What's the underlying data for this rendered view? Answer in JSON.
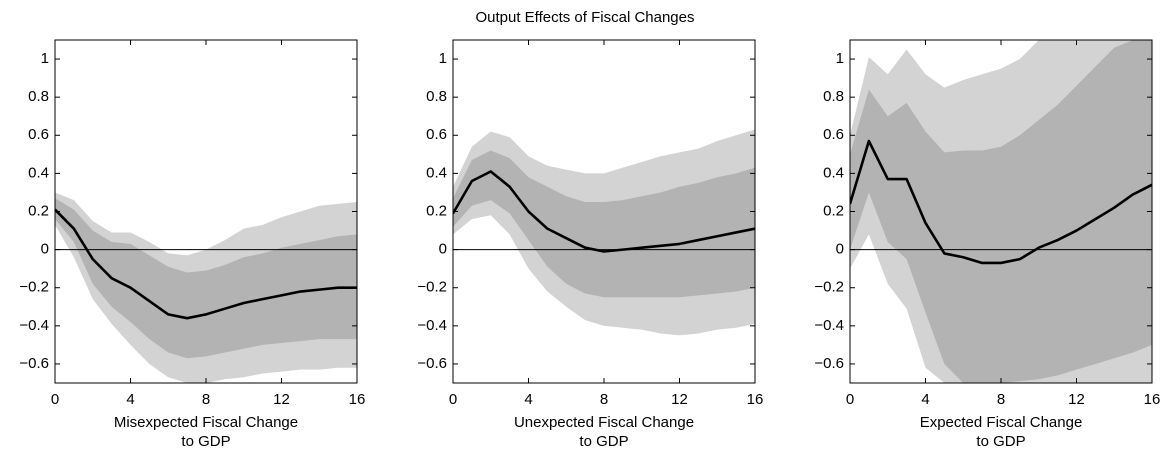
{
  "title": "Output Effects of Fiscal Changes",
  "chart_data": [
    {
      "type": "band-line",
      "xlabel": [
        "Misexpected Fiscal Change",
        "to GDP"
      ],
      "x": [
        0,
        1,
        2,
        3,
        4,
        5,
        6,
        7,
        8,
        9,
        10,
        11,
        12,
        13,
        14,
        15,
        16
      ],
      "xlim": [
        0,
        16
      ],
      "xticks": [
        0,
        4,
        8,
        12,
        16
      ],
      "ylim": [
        -0.7,
        1.1
      ],
      "yticks": [
        {
          "value": -0.6,
          "label": "−0.6"
        },
        {
          "value": -0.4,
          "label": "−0.4"
        },
        {
          "value": -0.2,
          "label": "−0.2"
        },
        0,
        0.2,
        0.4,
        0.6,
        0.8,
        1
      ],
      "hline": 0,
      "bands": [
        {
          "color": "#d3d3d3",
          "upper": [
            0.3,
            0.26,
            0.15,
            0.09,
            0.09,
            0.04,
            -0.02,
            -0.03,
            0.0,
            0.05,
            0.11,
            0.13,
            0.17,
            0.2,
            0.23,
            0.24,
            0.25
          ],
          "lower": [
            0.13,
            -0.04,
            -0.26,
            -0.39,
            -0.5,
            -0.6,
            -0.67,
            -0.7,
            -0.7,
            -0.68,
            -0.67,
            -0.65,
            -0.64,
            -0.63,
            -0.63,
            -0.62,
            -0.62
          ]
        },
        {
          "color": "#b3b3b3",
          "upper": [
            0.27,
            0.21,
            0.1,
            0.04,
            0.03,
            -0.03,
            -0.09,
            -0.12,
            -0.11,
            -0.08,
            -0.04,
            -0.02,
            0.01,
            0.03,
            0.05,
            0.07,
            0.08
          ],
          "lower": [
            0.16,
            0.04,
            -0.18,
            -0.3,
            -0.38,
            -0.47,
            -0.54,
            -0.57,
            -0.56,
            -0.54,
            -0.52,
            -0.5,
            -0.49,
            -0.48,
            -0.47,
            -0.47,
            -0.47
          ]
        }
      ],
      "color": "#000000",
      "values": [
        0.21,
        0.11,
        -0.05,
        -0.15,
        -0.2,
        -0.27,
        -0.34,
        -0.36,
        -0.34,
        -0.31,
        -0.28,
        -0.26,
        -0.24,
        -0.22,
        -0.21,
        -0.2,
        -0.2
      ]
    },
    {
      "type": "band-line",
      "xlabel": [
        "Unexpected Fiscal Change",
        "to GDP"
      ],
      "x": [
        0,
        1,
        2,
        3,
        4,
        5,
        6,
        7,
        8,
        9,
        10,
        11,
        12,
        13,
        14,
        15,
        16
      ],
      "xlim": [
        0,
        16
      ],
      "xticks": [
        0,
        4,
        8,
        12,
        16
      ],
      "ylim": [
        -0.7,
        1.1
      ],
      "yticks": [
        {
          "value": -0.6,
          "label": "−0.6"
        },
        {
          "value": -0.4,
          "label": "−0.4"
        },
        {
          "value": -0.2,
          "label": "−0.2"
        },
        0,
        0.2,
        0.4,
        0.6,
        0.8,
        1
      ],
      "hline": 0,
      "bands": [
        {
          "color": "#d3d3d3",
          "upper": [
            0.33,
            0.54,
            0.62,
            0.59,
            0.49,
            0.44,
            0.42,
            0.4,
            0.4,
            0.43,
            0.46,
            0.49,
            0.51,
            0.53,
            0.57,
            0.6,
            0.63
          ],
          "lower": [
            0.08,
            0.16,
            0.18,
            0.08,
            -0.1,
            -0.22,
            -0.3,
            -0.37,
            -0.4,
            -0.41,
            -0.42,
            -0.44,
            -0.45,
            -0.44,
            -0.42,
            -0.41,
            -0.39
          ]
        },
        {
          "color": "#b3b3b3",
          "upper": [
            0.27,
            0.47,
            0.52,
            0.48,
            0.38,
            0.33,
            0.28,
            0.25,
            0.25,
            0.26,
            0.28,
            0.3,
            0.33,
            0.35,
            0.38,
            0.4,
            0.43
          ],
          "lower": [
            0.12,
            0.23,
            0.26,
            0.19,
            0.05,
            -0.09,
            -0.18,
            -0.23,
            -0.25,
            -0.25,
            -0.25,
            -0.25,
            -0.25,
            -0.24,
            -0.23,
            -0.22,
            -0.2
          ]
        }
      ],
      "color": "#000000",
      "values": [
        0.19,
        0.36,
        0.41,
        0.33,
        0.2,
        0.11,
        0.06,
        0.01,
        -0.01,
        0.0,
        0.01,
        0.02,
        0.03,
        0.05,
        0.07,
        0.09,
        0.11
      ]
    },
    {
      "type": "band-line",
      "xlabel": [
        "Expected Fiscal Change",
        "to GDP"
      ],
      "x": [
        0,
        1,
        2,
        3,
        4,
        5,
        6,
        7,
        8,
        9,
        10,
        11,
        12,
        13,
        14,
        15,
        16
      ],
      "xlim": [
        0,
        16
      ],
      "xticks": [
        0,
        4,
        8,
        12,
        16
      ],
      "ylim": [
        -0.7,
        1.1
      ],
      "yticks": [
        {
          "value": -0.6,
          "label": "−0.6"
        },
        {
          "value": -0.4,
          "label": "−0.4"
        },
        {
          "value": -0.2,
          "label": "−0.2"
        },
        0,
        0.2,
        0.4,
        0.6,
        0.8,
        1
      ],
      "hline": 0,
      "bands": [
        {
          "color": "#d3d3d3",
          "upper": [
            0.6,
            1.01,
            0.92,
            1.05,
            0.92,
            0.85,
            0.89,
            0.92,
            0.95,
            1.0,
            1.1,
            1.1,
            1.1,
            1.1,
            1.1,
            1.1,
            1.1
          ],
          "lower": [
            -0.1,
            0.08,
            -0.18,
            -0.31,
            -0.62,
            -0.7,
            -0.7,
            -0.7,
            -0.7,
            -0.7,
            -0.7,
            -0.7,
            -0.7,
            -0.7,
            -0.7,
            -0.7,
            -0.7
          ]
        },
        {
          "color": "#b3b3b3",
          "upper": [
            0.5,
            0.84,
            0.7,
            0.77,
            0.62,
            0.51,
            0.52,
            0.52,
            0.54,
            0.6,
            0.68,
            0.76,
            0.86,
            0.96,
            1.06,
            1.1,
            1.1
          ],
          "lower": [
            0.0,
            0.3,
            0.04,
            -0.05,
            -0.33,
            -0.6,
            -0.7,
            -0.7,
            -0.7,
            -0.69,
            -0.68,
            -0.66,
            -0.63,
            -0.6,
            -0.57,
            -0.54,
            -0.5
          ]
        }
      ],
      "color": "#000000",
      "values": [
        0.24,
        0.57,
        0.37,
        0.37,
        0.14,
        -0.02,
        -0.04,
        -0.07,
        -0.07,
        -0.05,
        0.01,
        0.05,
        0.1,
        0.16,
        0.22,
        0.29,
        0.34
      ]
    }
  ]
}
